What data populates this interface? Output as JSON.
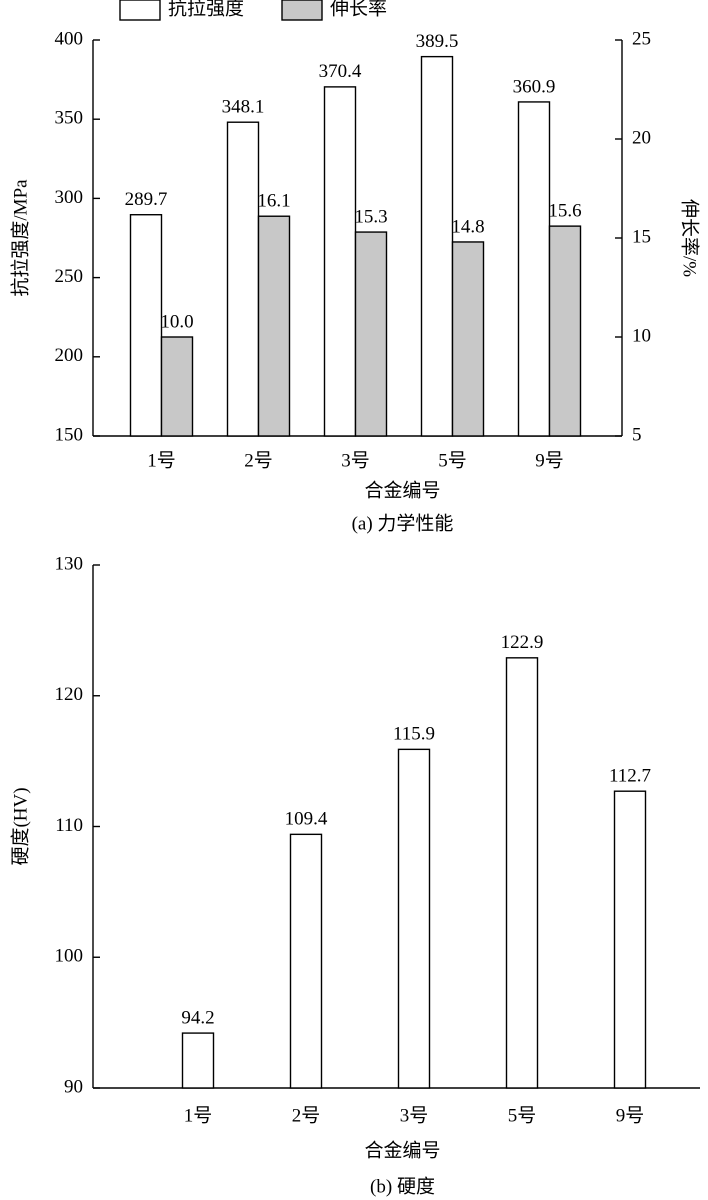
{
  "chart_data": [
    {
      "type": "bar",
      "categories": [
        "1号",
        "2号",
        "3号",
        "5号",
        "9号"
      ],
      "series": [
        {
          "name": "抗拉强度",
          "color": "#ffffff",
          "values": [
            289.7,
            348.1,
            370.4,
            389.5,
            360.9
          ]
        },
        {
          "name": "伸长率",
          "color": "#c8c8c8",
          "axis": "y2",
          "values": [
            10.0,
            16.1,
            15.3,
            14.8,
            15.6
          ],
          "value_labels": [
            "10.0",
            "16.1",
            "15.3",
            "14.8",
            "15.6"
          ]
        }
      ],
      "ylim": [
        150,
        400
      ],
      "yticks": [
        150,
        200,
        250,
        300,
        350,
        400
      ],
      "y2lim": [
        5,
        25
      ],
      "y2ticks": [
        5,
        10,
        15,
        20,
        25
      ],
      "ylabel": "抗拉强度/MPa",
      "y2label": "伸长率/%",
      "xlabel": "合金编号",
      "caption": "(a) 力学性能",
      "legend": "top"
    },
    {
      "type": "bar",
      "categories": [
        "1号",
        "2号",
        "3号",
        "5号",
        "9号"
      ],
      "values": [
        94.2,
        109.4,
        115.9,
        122.9,
        112.7
      ],
      "color": "#ffffff",
      "ylim": [
        90,
        130
      ],
      "yticks": [
        90,
        100,
        110,
        120,
        130
      ],
      "ylabel": "硬度(HV)",
      "xlabel": "合金编号",
      "caption": "(b) 硬度"
    }
  ]
}
